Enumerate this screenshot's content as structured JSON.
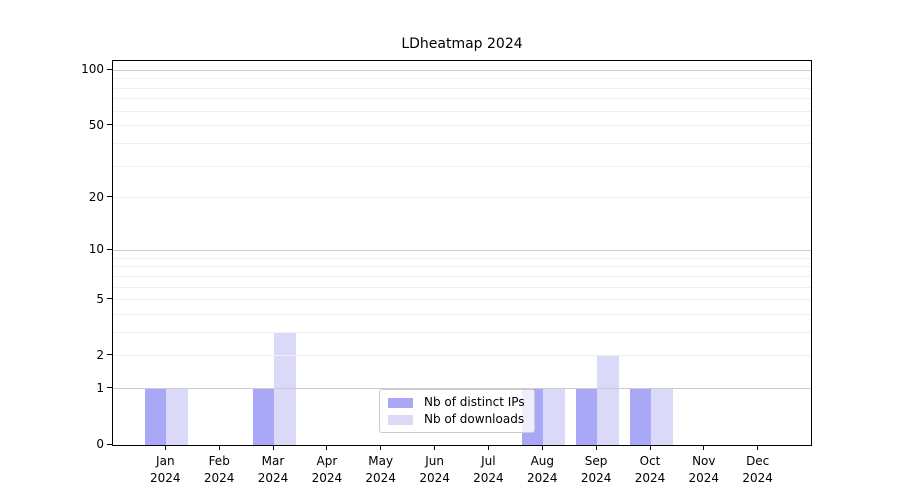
{
  "title": "LDheatmap 2024",
  "chart_data": {
    "type": "bar",
    "title": "LDheatmap 2024",
    "categories": [
      "Jan 2024",
      "Feb 2024",
      "Mar 2024",
      "Apr 2024",
      "May 2024",
      "Jun 2024",
      "Jul 2024",
      "Aug 2024",
      "Sep 2024",
      "Oct 2024",
      "Nov 2024",
      "Dec 2024"
    ],
    "series": [
      {
        "name": "Nb of distinct IPs",
        "color": "#a8a8f6",
        "values": [
          1,
          0,
          1,
          0,
          0,
          0,
          0,
          1,
          1,
          1,
          0,
          0
        ]
      },
      {
        "name": "Nb of downloads",
        "color": "#dadaf8",
        "values": [
          1,
          0,
          3,
          0,
          0,
          0,
          0,
          1,
          2,
          1,
          0,
          0
        ]
      }
    ],
    "xlabel": "",
    "ylabel": "",
    "yscale": "log1p",
    "yticks": [
      0,
      1,
      2,
      5,
      10,
      20,
      50,
      100
    ],
    "ylim": [
      0,
      120
    ],
    "grid": true,
    "legend_position": "lower center inside plot"
  },
  "x_axis": {
    "months": [
      "Jan",
      "Feb",
      "Mar",
      "Apr",
      "May",
      "Jun",
      "Jul",
      "Aug",
      "Sep",
      "Oct",
      "Nov",
      "Dec"
    ],
    "year": "2024"
  },
  "colors": {
    "bar_distinct_ips": "#a8a8f6",
    "bar_downloads": "#dadaf8",
    "grid_major": "#cccccc",
    "grid_minor": "#f0f0f0",
    "spine": "#000000",
    "text": "#000000",
    "legend_border": "#cccccc"
  }
}
